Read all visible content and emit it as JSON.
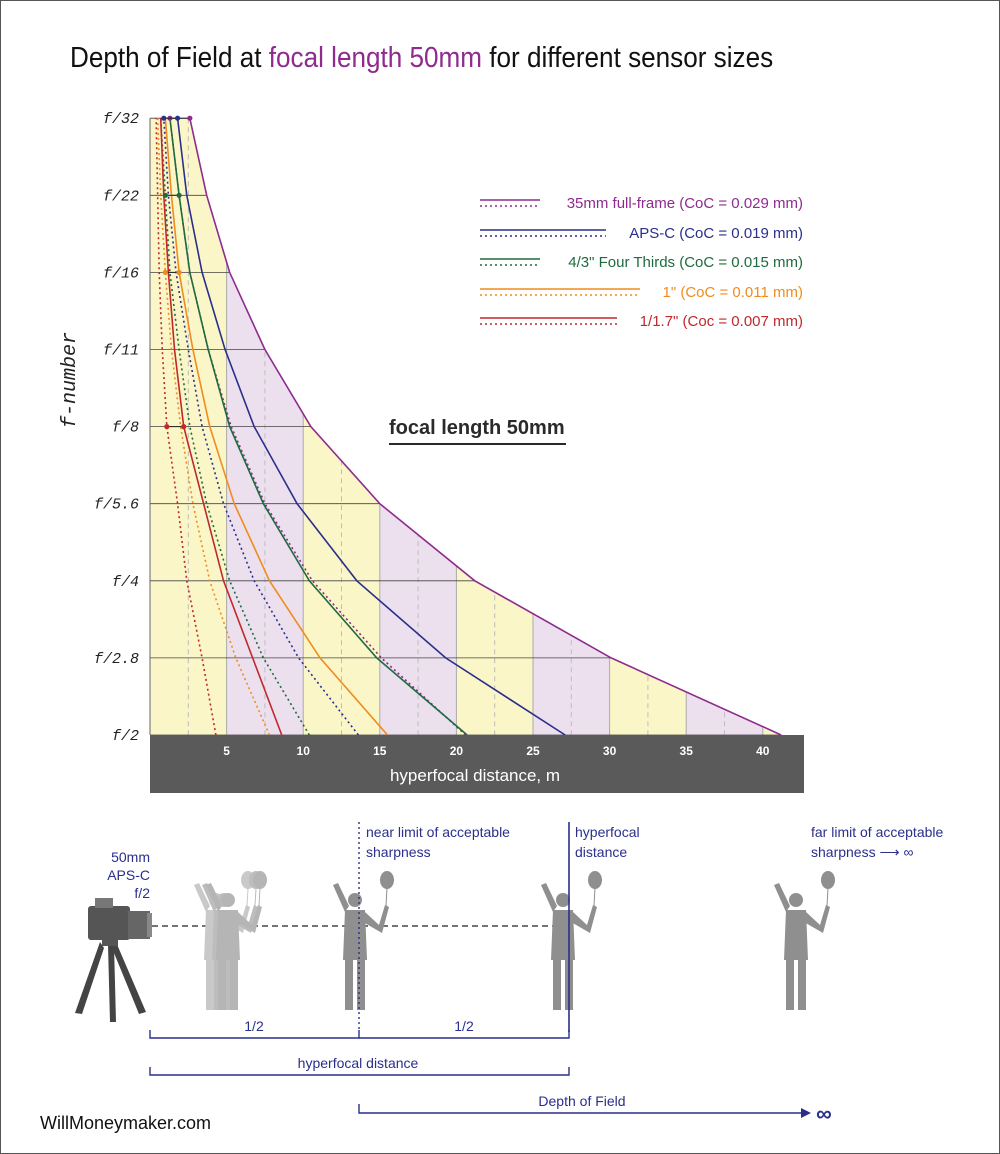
{
  "title": {
    "prefix": "Depth of Field at ",
    "highlight": "focal length 50mm",
    "suffix": " for different sensor sizes"
  },
  "chart_data": {
    "type": "line",
    "title": "Depth of Field at focal length 50mm for different sensor sizes",
    "annotation": "focal length 50mm",
    "xlabel": "hyperfocal distance, m",
    "ylabel": "f-number",
    "xlim": [
      0,
      42.5
    ],
    "x_ticks": [
      5,
      10,
      15,
      20,
      25,
      30,
      35,
      40
    ],
    "y_categories": [
      "f/2",
      "f/2.8",
      "f/4",
      "f/5.6",
      "f/8",
      "f/11",
      "f/16",
      "f/22",
      "f/32"
    ],
    "legend_position": "top-right",
    "series": [
      {
        "name": "35mm full-frame (CoC = 0.029 mm)",
        "color": "#8e2b8e",
        "hyperfocal": [
          41.2,
          30.1,
          21.2,
          15.0,
          10.5,
          7.5,
          5.2,
          3.7,
          2.6
        ],
        "near": [
          20.6,
          15.1,
          10.6,
          7.5,
          5.3,
          3.8,
          2.6,
          1.9,
          1.3
        ]
      },
      {
        "name": "APS-C (CoC = 0.019 mm)",
        "color": "#2a2f8c",
        "hyperfocal": [
          27.1,
          19.3,
          13.5,
          9.6,
          6.8,
          4.9,
          3.4,
          2.4,
          1.8
        ],
        "near": [
          13.6,
          9.7,
          6.8,
          4.8,
          3.4,
          2.5,
          1.7,
          1.2,
          0.9
        ]
      },
      {
        "name": "4/3\" Four Thirds (CoC = 0.015 mm)",
        "color": "#1e6b3d",
        "hyperfocal": [
          20.7,
          14.8,
          10.4,
          7.4,
          5.2,
          3.8,
          2.6,
          1.9,
          1.3
        ],
        "near": [
          10.4,
          7.4,
          5.2,
          3.7,
          2.6,
          1.9,
          1.3,
          1.0,
          0.7
        ]
      },
      {
        "name": "1\" (CoC = 0.011 mm)",
        "color": "#f08c1e",
        "hyperfocal": [
          15.5,
          11.1,
          7.8,
          5.5,
          3.9,
          2.8,
          1.9,
          1.4,
          1.0
        ],
        "near": [
          7.8,
          5.6,
          3.9,
          2.8,
          2.0,
          1.4,
          1.0,
          0.7,
          0.5
        ]
      },
      {
        "name": "1/1.7\" (Coc = 0.007 mm)",
        "color": "#c0282c",
        "hyperfocal": [
          8.6,
          6.7,
          4.8,
          3.5,
          2.2,
          1.6,
          1.2,
          0.9,
          0.7
        ],
        "near": [
          4.3,
          3.4,
          2.4,
          1.8,
          1.1,
          0.8,
          0.6,
          0.5,
          0.4
        ]
      }
    ]
  },
  "diagram": {
    "camera_label": [
      "50mm",
      "APS-C",
      "f/2"
    ],
    "near_label": [
      "near limit of acceptable",
      "sharpness"
    ],
    "hyperfocal_label": [
      "hyperfocal",
      "distance"
    ],
    "far_label": [
      "far limit of acceptable",
      "sharpness ⟶ ∞"
    ],
    "half_left": "1/2",
    "half_right": "1/2",
    "hyperfocal_span": "hyperfocal distance",
    "dof_span": "Depth of Field",
    "infinity": "∞",
    "color": "#2a2f8c"
  },
  "footer": "WillMoneymaker.com"
}
